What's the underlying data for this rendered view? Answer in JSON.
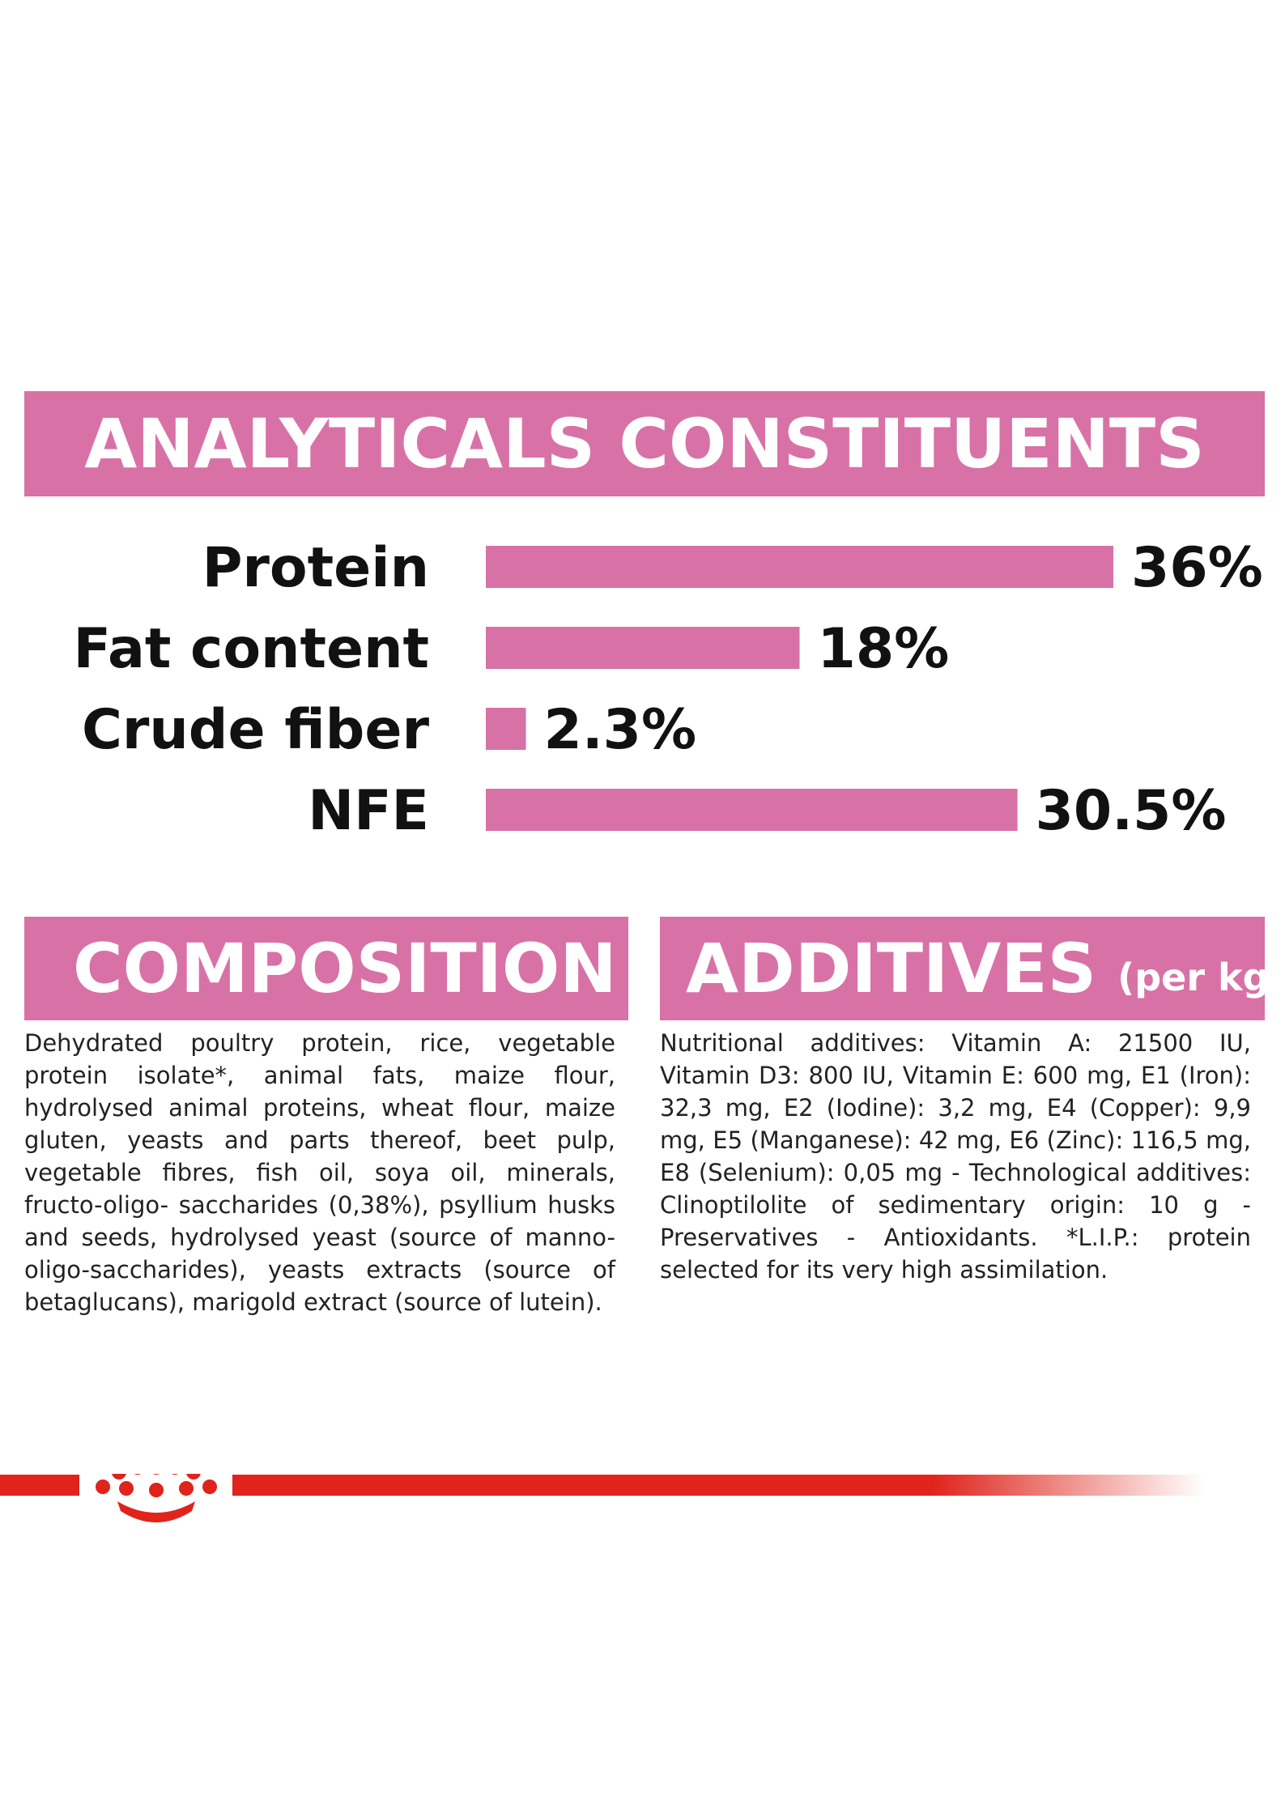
{
  "headings": {
    "analytics": "ANALYTICALS CONSTITUENTS",
    "composition": "COMPOSITION",
    "additives": "ADDITIVES",
    "additives_unit": "(per kg)"
  },
  "chart_data": {
    "type": "bar",
    "orientation": "horizontal",
    "categories": [
      "Protein",
      "Fat content",
      "Crude fiber",
      "NFE"
    ],
    "values": [
      36,
      18,
      2.3,
      30.5
    ],
    "value_labels": [
      "36%",
      "18%",
      "2.3%",
      "30.5%"
    ],
    "unit": "%",
    "title": "ANALYTICALS CONSTITUENTS",
    "xlim": [
      0,
      36
    ],
    "grid": false,
    "bar_color": "#d872a6"
  },
  "composition_text": "Dehydrated poultry protein, rice, vegetable protein isolate*, animal fats, maize flour, hydrolysed animal proteins, wheat flour, maize gluten, yeasts and parts thereof, beet pulp, vegetable fibres, fish oil, soya oil, minerals, fructo-oligo- saccharides (0,38%), psyllium husks and seeds, hydrolysed yeast (source of manno-oligo-saccharides), yeasts extracts (source of betaglucans), marigold extract (source of lutein).",
  "additives_text": "Nutritional additives: Vitamin A: 21500 IU, Vitamin D3: 800 IU, Vitamin E: 600 mg, E1 (Iron): 32,3 mg, E2 (Iodine): 3,2 mg, E4 (Copper): 9,9 mg, E5 (Manganese): 42 mg, E6 (Zinc): 116,5 mg, E8 (Selenium): 0,05 mg - Technological additives: Clinoptilolite of sedimentary origin: 10 g - Preservatives - Antioxidants. *L.I.P.: protein selected for its very high assimilation.",
  "colors": {
    "accent_pink": "#d872a6",
    "brand_red": "#e0231b",
    "text": "#111111"
  },
  "logo": {
    "icon": "royal-canin-crown-icon"
  }
}
